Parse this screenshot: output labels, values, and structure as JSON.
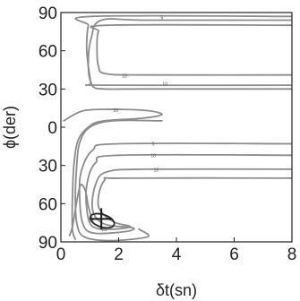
{
  "chart_data": {
    "type": "contour",
    "title": "",
    "xlabel": "δt(sn)",
    "ylabel": "ϕ(der)",
    "xlim": [
      0,
      8
    ],
    "ylim": [
      90,
      -90
    ],
    "x_ticks": [
      "0",
      "2",
      "4",
      "6",
      "8"
    ],
    "y_ticks": [
      "90",
      "60",
      "30",
      "0",
      "30",
      "60",
      "90"
    ],
    "contour_labels": [
      "5",
      "10",
      "15",
      "20"
    ],
    "best_fit": {
      "dt": 1.4,
      "phi": -72
    },
    "series": [
      {
        "name": "",
        "points": [
          [
            8,
            87
          ],
          [
            1.05,
            87
          ],
          [
            0.95,
            80
          ],
          [
            0.9,
            70
          ],
          [
            0.9,
            58
          ],
          [
            1.0,
            40
          ],
          [
            1.1,
            32
          ],
          [
            1.5,
            30
          ],
          [
            3,
            30
          ],
          [
            8,
            30
          ]
        ]
      },
      {
        "name": "",
        "points": [
          [
            8,
            80
          ],
          [
            1.6,
            80
          ],
          [
            1.3,
            75
          ],
          [
            1.25,
            62
          ],
          [
            1.3,
            48
          ],
          [
            1.55,
            42
          ],
          [
            3,
            41
          ],
          [
            8,
            41
          ]
        ]
      },
      {
        "name": "",
        "points": [
          [
            8,
            33
          ],
          [
            1.5,
            33
          ],
          [
            1.05,
            35
          ],
          [
            0.95,
            50
          ],
          [
            1.05,
            70
          ],
          [
            1.4,
            84
          ],
          [
            3,
            84
          ],
          [
            8,
            84
          ]
        ]
      },
      {
        "name": "",
        "points": [
          [
            0.1,
            5
          ],
          [
            0.8,
            13
          ],
          [
            2.0,
            14
          ],
          [
            3.0,
            13
          ],
          [
            3.5,
            10
          ],
          [
            2.8,
            7
          ],
          [
            1.5,
            5
          ],
          [
            1.0,
            1
          ],
          [
            0.6,
            -10
          ],
          [
            0.45,
            -30
          ],
          [
            0.4,
            -55
          ],
          [
            0.4,
            -80
          ],
          [
            0.5,
            -88
          ]
        ]
      },
      {
        "name": "",
        "points": [
          [
            3.5,
            5
          ],
          [
            1.8,
            5
          ],
          [
            1.0,
            0
          ],
          [
            0.65,
            -12
          ],
          [
            0.55,
            -30
          ],
          [
            0.5,
            -55
          ],
          [
            0.55,
            -75
          ],
          [
            0.8,
            -86
          ],
          [
            1.7,
            -89
          ],
          [
            3.0,
            -86
          ],
          [
            2.7,
            -80
          ]
        ]
      },
      {
        "name": "",
        "points": [
          [
            8,
            -13
          ],
          [
            2.0,
            -13
          ],
          [
            1.1,
            -18
          ],
          [
            0.7,
            -35
          ],
          [
            0.65,
            -55
          ],
          [
            0.75,
            -75
          ],
          [
            1.1,
            -83
          ],
          [
            2.2,
            -82
          ],
          [
            2.5,
            -79
          ],
          [
            1.5,
            -76
          ],
          [
            1.1,
            -65
          ],
          [
            1.2,
            -45
          ],
          [
            1.6,
            -35
          ],
          [
            3,
            -33
          ],
          [
            8,
            -33
          ]
        ]
      },
      {
        "name": "",
        "points": [
          [
            8,
            -22
          ],
          [
            2.0,
            -22
          ],
          [
            1.2,
            -28
          ],
          [
            0.9,
            -45
          ],
          [
            0.9,
            -65
          ],
          [
            1.1,
            -78
          ],
          [
            1.8,
            -80
          ],
          [
            2.4,
            -78
          ],
          [
            1.8,
            -74
          ],
          [
            1.3,
            -62
          ],
          [
            1.5,
            -42
          ],
          [
            2.2,
            -40
          ],
          [
            8,
            -40
          ]
        ]
      },
      {
        "name": "",
        "points": [
          [
            0.3,
            -85
          ],
          [
            0.4,
            -78
          ],
          [
            0.5,
            -65
          ],
          [
            0.6,
            -52
          ],
          [
            0.7,
            -45
          ],
          [
            0.85,
            -50
          ],
          [
            0.95,
            -62
          ],
          [
            1.1,
            -74
          ]
        ]
      }
    ]
  }
}
